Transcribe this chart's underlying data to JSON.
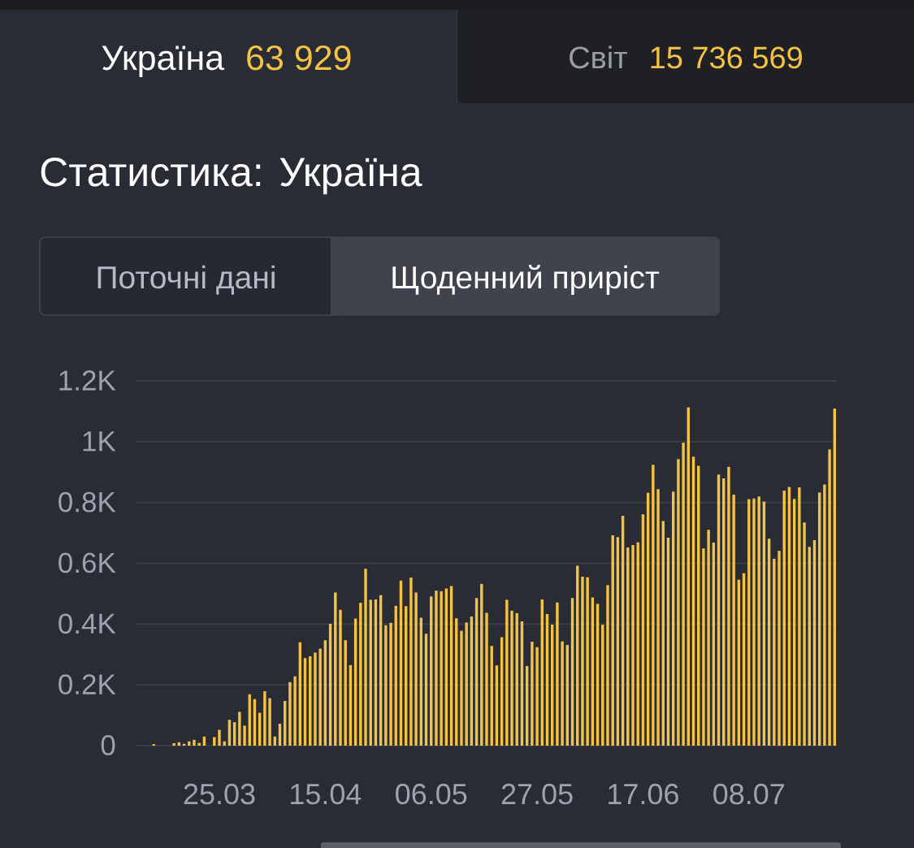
{
  "chart_data": {
    "type": "bar",
    "title": "Статистика: Україна",
    "annotations": [
      "Україна",
      "63 929",
      "Світ",
      "15 736 569",
      "Поточні дані",
      "Щоденний приріст"
    ],
    "categories": [
      null,
      null,
      null,
      null,
      null,
      null,
      null,
      null,
      null,
      null,
      null,
      null,
      null,
      "25.03",
      null,
      null,
      null,
      null,
      null,
      null,
      null,
      null,
      null,
      null,
      null,
      null,
      null,
      null,
      null,
      null,
      null,
      null,
      null,
      null,
      "15.04",
      null,
      null,
      null,
      null,
      null,
      null,
      null,
      null,
      null,
      null,
      null,
      null,
      null,
      null,
      null,
      null,
      null,
      null,
      null,
      null,
      "06.05",
      null,
      null,
      null,
      null,
      null,
      null,
      null,
      null,
      null,
      null,
      null,
      null,
      null,
      null,
      null,
      null,
      null,
      null,
      null,
      null,
      "27.05",
      null,
      null,
      null,
      null,
      null,
      null,
      null,
      null,
      null,
      null,
      null,
      null,
      null,
      null,
      null,
      null,
      null,
      null,
      null,
      null,
      "17.06",
      null,
      null,
      null,
      null,
      null,
      null,
      null,
      null,
      null,
      null,
      null,
      null,
      null,
      null,
      null,
      null,
      null,
      null,
      null,
      null,
      "08.07",
      null,
      null,
      null,
      null,
      null,
      null,
      null,
      null,
      null,
      null,
      null,
      null,
      null,
      null,
      null,
      null,
      null
    ],
    "values": [
      5,
      0,
      0,
      0,
      8,
      11,
      6,
      14,
      19,
      9,
      30,
      0,
      28,
      52,
      14,
      85,
      77,
      111,
      66,
      169,
      153,
      108,
      179,
      156,
      30,
      72,
      147,
      209,
      228,
      340,
      288,
      294,
      306,
      319,
      347,
      401,
      504,
      447,
      347,
      265,
      418,
      470,
      582,
      480,
      481,
      495,
      396,
      404,
      460,
      543,
      459,
      553,
      504,
      421,
      368,
      491,
      510,
      508,
      517,
      525,
      419,
      378,
      405,
      425,
      486,
      532,
      437,
      328,
      264,
      357,
      480,
      444,
      436,
      409,
      262,
      342,
      324,
      481,
      433,
      398,
      471,
      343,
      331,
      486,
      592,
      556,
      554,
      488,
      466,
      398,
      528,
      692,
      686,
      756,
      652,
      660,
      669,
      761,
      832,
      924,
      844,
      739,
      684,
      836,
      943,
      997,
      1113,
      951,
      921,
      649,
      710,
      668,
      892,
      879,
      917,
      826,
      546,
      567,
      811,
      813,
      820,
      803,
      681,
      615,
      641,
      839,
      851,
      812,
      850,
      734,
      654,
      676,
      833,
      859,
      975,
      1109
    ],
    "color": "#f5c344",
    "ylim": [
      0,
      1200
    ],
    "yticks": [
      0,
      {
        "value": 200,
        "label": "0.2K"
      },
      {
        "value": 400,
        "label": "0.4K"
      },
      {
        "value": 600,
        "label": "0.6K"
      },
      {
        "value": 800,
        "label": "0.8K"
      },
      {
        "value": 1000,
        "label": "1K"
      },
      {
        "value": 1200,
        "label": "1.2K"
      }
    ],
    "grid": "y"
  }
}
